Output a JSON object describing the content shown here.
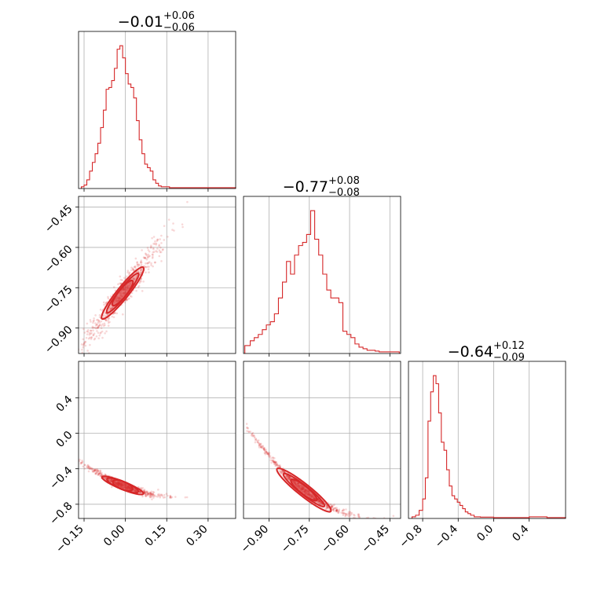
{
  "chart_data": {
    "type": "corner",
    "color": "#d62728",
    "grid": true,
    "params": [
      {
        "title": {
          "main": "−0.01",
          "plus": "+0.06",
          "minus": "−0.06"
        },
        "range": [
          -0.17,
          0.4
        ],
        "ticks": [
          -0.15,
          0.0,
          0.15,
          0.3
        ],
        "tick_labels": [
          "−0.15",
          "0.00",
          "0.15",
          "0.30"
        ],
        "hist": {
          "x": [
            -0.16,
            -0.15,
            -0.14,
            -0.13,
            -0.12,
            -0.11,
            -0.1,
            -0.09,
            -0.08,
            -0.07,
            -0.06,
            -0.05,
            -0.04,
            -0.03,
            -0.02,
            -0.01,
            0.0,
            0.01,
            0.02,
            0.03,
            0.04,
            0.05,
            0.06,
            0.07,
            0.08,
            0.09,
            0.1,
            0.11,
            0.12,
            0.13,
            0.14,
            0.16,
            0.2,
            0.25,
            0.3,
            0.35
          ],
          "y": [
            1,
            2,
            5,
            10,
            15,
            20,
            26,
            35,
            45,
            57,
            58,
            62,
            69,
            80,
            82,
            75,
            66,
            60,
            58,
            52,
            39,
            28,
            20,
            14,
            12,
            10,
            5,
            3,
            1.5,
            1,
            1,
            0.5,
            0.5,
            0.5,
            0.5,
            0.5
          ]
        }
      },
      {
        "title": {
          "main": "−0.77",
          "plus": "+0.08",
          "minus": "−0.08"
        },
        "range": [
          -0.995,
          -0.41
        ],
        "ticks": [
          -0.9,
          -0.75,
          -0.6,
          -0.45
        ],
        "tick_labels": [
          "−0.90",
          "−0.75",
          "−0.60",
          "−0.45"
        ],
        "hist": {
          "x": [
            -0.99,
            -0.97,
            -0.955,
            -0.94,
            -0.925,
            -0.91,
            -0.895,
            -0.88,
            -0.865,
            -0.85,
            -0.835,
            -0.82,
            -0.805,
            -0.79,
            -0.775,
            -0.76,
            -0.745,
            -0.73,
            -0.715,
            -0.7,
            -0.685,
            -0.67,
            -0.655,
            -0.64,
            -0.625,
            -0.61,
            -0.595,
            -0.58,
            -0.565,
            -0.55,
            -0.535,
            -0.52,
            -0.505,
            -0.49,
            -0.475,
            -0.46,
            -0.445,
            -0.43
          ],
          "y": [
            5,
            8,
            10,
            12,
            15,
            18,
            20,
            25,
            35,
            45,
            58,
            50,
            62,
            68,
            70,
            75,
            90,
            72,
            62,
            50,
            40,
            35,
            35,
            32,
            14,
            12,
            10,
            6,
            4,
            3,
            2,
            2,
            1.5,
            1,
            1,
            1,
            1,
            1
          ]
        }
      },
      {
        "title": {
          "main": "−0.64",
          "plus": "+0.12",
          "minus": "−0.09"
        },
        "range": [
          -0.96,
          0.81
        ],
        "ticks": [
          -0.8,
          -0.4,
          0.0,
          0.4
        ],
        "tick_labels": [
          "−0.8",
          "−0.4",
          "0.0",
          "0.4"
        ],
        "hist": {
          "x": [
            -0.92,
            -0.88,
            -0.84,
            -0.8,
            -0.77,
            -0.74,
            -0.71,
            -0.68,
            -0.65,
            -0.62,
            -0.59,
            -0.56,
            -0.53,
            -0.5,
            -0.47,
            -0.44,
            -0.41,
            -0.38,
            -0.35,
            -0.32,
            -0.29,
            -0.26,
            -0.22,
            -0.15,
            0.0,
            0.2,
            0.4,
            0.6,
            0.75
          ],
          "y": [
            1,
            2,
            5,
            12,
            25,
            60,
            78,
            88,
            83,
            65,
            47,
            42,
            30,
            20,
            14,
            12,
            10,
            8,
            6,
            4,
            3,
            2,
            1,
            0.8,
            0.5,
            0.5,
            1,
            0.5,
            0.5
          ]
        }
      }
    ],
    "pairs": [
      {
        "x_param": 0,
        "y_param": 1,
        "corr": 0.96
      },
      {
        "x_param": 0,
        "y_param": 2,
        "corr": -0.8
      },
      {
        "x_param": 1,
        "y_param": 2,
        "corr": -0.88
      }
    ]
  }
}
